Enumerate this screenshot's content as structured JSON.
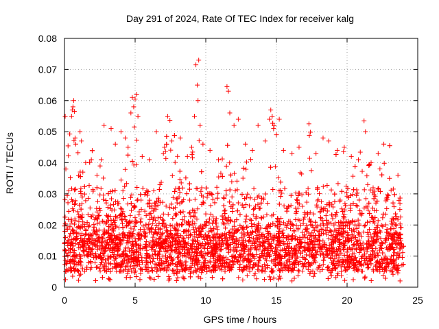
{
  "chart_data": {
    "type": "scatter",
    "title": "Day 291 of 2024, Rate Of TEC Index for receiver kalg",
    "xlabel": "GPS time / hours",
    "ylabel": "ROTI / TECUs",
    "xlim": [
      0,
      25
    ],
    "ylim": [
      0,
      0.08
    ],
    "x_ticks": [
      0,
      5,
      10,
      15,
      20,
      25
    ],
    "x_tick_labels": [
      "0",
      "5",
      "10",
      "15",
      "20",
      "25"
    ],
    "y_ticks": [
      0,
      0.01,
      0.02,
      0.03,
      0.04,
      0.05,
      0.06,
      0.07,
      0.08
    ],
    "y_tick_labels": [
      "0",
      "0.01",
      "0.02",
      "0.03",
      "0.04",
      "0.05",
      "0.06",
      "0.07",
      "0.08"
    ],
    "grid": true,
    "marker": "+",
    "marker_color": "#ff0000",
    "x_range_of_data": [
      0,
      24
    ],
    "baseline_band": [
      0.005,
      0.025
    ],
    "series": [
      {
        "name": "ROTI",
        "points": [
          [
            0.05,
            0.055
          ],
          [
            0.1,
            0.038
          ],
          [
            0.3,
            0.031
          ],
          [
            0.5,
            0.055
          ],
          [
            0.55,
            0.057
          ],
          [
            0.6,
            0.058
          ],
          [
            0.65,
            0.06
          ],
          [
            0.7,
            0.0565
          ],
          [
            0.75,
            0.048
          ],
          [
            0.8,
            0.046
          ],
          [
            1.1,
            0.05
          ],
          [
            1.2,
            0.047
          ],
          [
            1.3,
            0.037
          ],
          [
            1.5,
            0.04
          ],
          [
            1.9,
            0.041
          ],
          [
            2.3,
            0.036
          ],
          [
            2.6,
            0.041
          ],
          [
            2.8,
            0.052
          ],
          [
            3.3,
            0.051
          ],
          [
            3.6,
            0.046
          ],
          [
            4.0,
            0.05
          ],
          [
            4.3,
            0.048
          ],
          [
            4.5,
            0.045
          ],
          [
            4.7,
            0.056
          ],
          [
            4.8,
            0.061
          ],
          [
            4.9,
            0.058
          ],
          [
            5.0,
            0.0605
          ],
          [
            5.1,
            0.062
          ],
          [
            5.2,
            0.055
          ],
          [
            5.5,
            0.042
          ],
          [
            6.0,
            0.041
          ],
          [
            6.5,
            0.05
          ],
          [
            7.0,
            0.043
          ],
          [
            7.3,
            0.055
          ],
          [
            7.6,
            0.047
          ],
          [
            8.2,
            0.048
          ],
          [
            8.7,
            0.042
          ],
          [
            9.0,
            0.045
          ],
          [
            9.2,
            0.055
          ],
          [
            9.3,
            0.0715
          ],
          [
            9.4,
            0.065
          ],
          [
            9.45,
            0.06
          ],
          [
            9.5,
            0.073
          ],
          [
            9.6,
            0.052
          ],
          [
            9.8,
            0.046
          ],
          [
            10.3,
            0.044
          ],
          [
            10.9,
            0.041
          ],
          [
            11.5,
            0.0645
          ],
          [
            11.6,
            0.063
          ],
          [
            11.7,
            0.056
          ],
          [
            12.0,
            0.052
          ],
          [
            12.3,
            0.054
          ],
          [
            12.8,
            0.046
          ],
          [
            13.3,
            0.044
          ],
          [
            13.7,
            0.052
          ],
          [
            14.2,
            0.047
          ],
          [
            14.5,
            0.054
          ],
          [
            14.6,
            0.057
          ],
          [
            14.7,
            0.055
          ],
          [
            14.8,
            0.051
          ],
          [
            15.0,
            0.049
          ],
          [
            15.2,
            0.054
          ],
          [
            15.5,
            0.044
          ],
          [
            16.1,
            0.043
          ],
          [
            16.6,
            0.045
          ],
          [
            17.3,
            0.0525
          ],
          [
            17.8,
            0.043
          ],
          [
            18.3,
            0.048
          ],
          [
            18.7,
            0.047
          ],
          [
            19.3,
            0.044
          ],
          [
            19.8,
            0.045
          ],
          [
            20.3,
            0.042
          ],
          [
            20.8,
            0.041
          ],
          [
            21.2,
            0.0535
          ],
          [
            21.3,
            0.05
          ],
          [
            21.7,
            0.04
          ],
          [
            22.2,
            0.043
          ],
          [
            22.6,
            0.046
          ],
          [
            23.0,
            0.035
          ],
          [
            23.6,
            0.036
          ]
        ]
      }
    ]
  }
}
